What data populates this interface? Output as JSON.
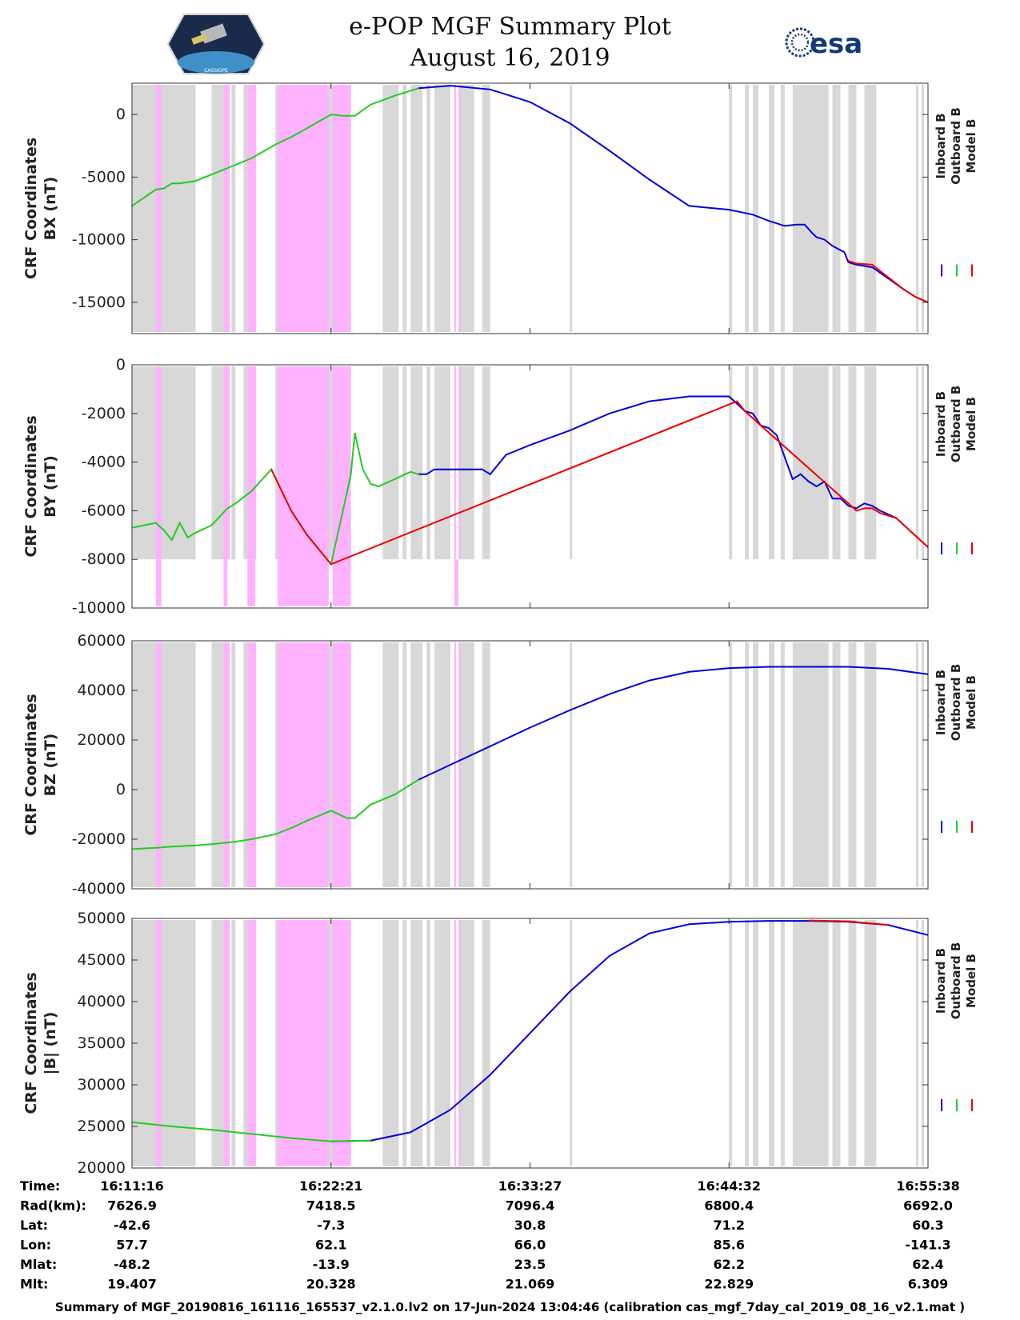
{
  "header": {
    "title": "e-POP MGF Summary Plot",
    "date": "August 16, 2019",
    "left_logo": "cassiope-satellite-logo",
    "left_logo_text": "CASSIOPE",
    "right_logo": "esa-logo",
    "right_logo_text": "esa"
  },
  "colors": {
    "inboard": "#0000dd",
    "outboard": "#22cc22",
    "model": "#ee0000",
    "gray_band": "#d8d8d8",
    "pink_band": "#ffb3ff"
  },
  "legend": [
    "Inboard B",
    "Outboard B",
    "Model B"
  ],
  "gray_intervals": [
    [
      0.0,
      0.08
    ],
    [
      0.1,
      0.12
    ],
    [
      0.125,
      0.13
    ],
    [
      0.14,
      0.15
    ],
    [
      0.18,
      0.275
    ],
    [
      0.315,
      0.335
    ],
    [
      0.34,
      0.345
    ],
    [
      0.35,
      0.365
    ],
    [
      0.37,
      0.375
    ],
    [
      0.38,
      0.4
    ],
    [
      0.41,
      0.43
    ],
    [
      0.44,
      0.45
    ],
    [
      0.55,
      0.553
    ],
    [
      0.75,
      0.754
    ],
    [
      0.77,
      0.775
    ],
    [
      0.78,
      0.787
    ],
    [
      0.8,
      0.807
    ],
    [
      0.815,
      0.82
    ],
    [
      0.83,
      0.875
    ],
    [
      0.88,
      0.89
    ],
    [
      0.9,
      0.91
    ],
    [
      0.92,
      0.935
    ],
    [
      0.985,
      0.988
    ],
    [
      0.992,
      0.995
    ]
  ],
  "pink_intervals": [
    [
      0.03,
      0.037
    ],
    [
      0.115,
      0.123
    ],
    [
      0.145,
      0.156
    ],
    [
      0.183,
      0.247
    ],
    [
      0.252,
      0.275
    ],
    [
      0.405,
      0.407
    ],
    [
      0.411,
      0.413
    ]
  ],
  "chart_data": [
    {
      "type": "line",
      "ylabel": "CRF Coordinates BX (nT)",
      "ylabel_lines": [
        "CRF Coordinates",
        "BX (nT)"
      ],
      "ylim": [
        -17500,
        2500
      ],
      "yticks": [
        0,
        -5000,
        -10000,
        -15000
      ],
      "ytick_labels": [
        "0",
        "-5000",
        "-10000",
        "-15000"
      ],
      "x_range": [
        0,
        1
      ],
      "series": [
        {
          "name": "Inboard B",
          "color": "#0000dd",
          "x": [
            0.36,
            0.4,
            0.45,
            0.5,
            0.55,
            0.6,
            0.65,
            0.7,
            0.75,
            0.765,
            0.78,
            0.8,
            0.82,
            0.835,
            0.845,
            0.855,
            0.86,
            0.87,
            0.88,
            0.895,
            0.9,
            0.91,
            0.93,
            0.95,
            0.97,
            0.985,
            1.0
          ],
          "y": [
            2100,
            2300,
            2000,
            1000,
            -700,
            -2900,
            -5200,
            -7300,
            -7600,
            -7800,
            -8000,
            -8500,
            -8900,
            -8800,
            -8800,
            -9500,
            -9800,
            -10000,
            -10500,
            -11000,
            -11800,
            -12000,
            -12200,
            -13100,
            -14000,
            -14600,
            -15000
          ]
        },
        {
          "name": "Outboard B",
          "color": "#22cc22",
          "x": [
            0.0,
            0.03,
            0.04,
            0.05,
            0.06,
            0.08,
            0.1,
            0.15,
            0.18,
            0.2,
            0.22,
            0.25,
            0.265,
            0.28,
            0.3,
            0.33,
            0.36
          ],
          "y": [
            -7300,
            -6000,
            -5900,
            -5500,
            -5500,
            -5300,
            -4800,
            -3500,
            -2400,
            -1800,
            -1100,
            0,
            -100,
            -100,
            800,
            1500,
            2100
          ]
        },
        {
          "name": "Model B",
          "color": "#ee0000",
          "x": [
            0.9,
            0.91,
            0.93,
            0.95,
            0.97,
            0.985,
            1.0
          ],
          "y": [
            -11700,
            -11900,
            -12000,
            -13000,
            -14000,
            -14600,
            -15000
          ]
        }
      ]
    },
    {
      "type": "line",
      "ylabel": "CRF Coordinates BY (nT)",
      "ylabel_lines": [
        "CRF Coordinates",
        "BY (nT)"
      ],
      "ylim": [
        -10000,
        0
      ],
      "yticks": [
        0,
        -2000,
        -4000,
        -6000,
        -8000,
        -10000
      ],
      "ytick_labels": [
        "0",
        "-2000",
        "-4000",
        "-6000",
        "-8000",
        "-10000"
      ],
      "x_range": [
        0,
        1
      ],
      "band_floor": -8000,
      "pink_lower_intervals": [
        [
          0.03,
          0.037
        ],
        [
          0.115,
          0.12
        ],
        [
          0.145,
          0.155
        ],
        [
          0.183,
          0.247
        ],
        [
          0.252,
          0.275
        ],
        [
          0.405,
          0.41
        ]
      ],
      "series": [
        {
          "name": "Inboard B",
          "color": "#0000dd",
          "x": [
            0.36,
            0.37,
            0.38,
            0.39,
            0.4,
            0.42,
            0.44,
            0.45,
            0.47,
            0.5,
            0.55,
            0.6,
            0.65,
            0.7,
            0.73,
            0.75,
            0.76,
            0.77,
            0.78,
            0.79,
            0.8,
            0.81,
            0.82,
            0.83,
            0.84,
            0.85,
            0.86,
            0.87,
            0.88,
            0.89,
            0.9,
            0.91,
            0.92,
            0.93,
            0.94,
            0.96,
            0.98,
            1.0
          ],
          "y": [
            -4500,
            -4500,
            -4300,
            -4300,
            -4300,
            -4300,
            -4300,
            -4500,
            -3700,
            -3300,
            -2700,
            -2000,
            -1500,
            -1300,
            -1300,
            -1300,
            -1600,
            -1900,
            -2000,
            -2500,
            -2600,
            -2900,
            -3800,
            -4700,
            -4500,
            -4800,
            -5000,
            -4800,
            -5500,
            -5500,
            -5800,
            -5900,
            -5700,
            -5800,
            -6000,
            -6300,
            -6900,
            -7500
          ]
        },
        {
          "name": "Outboard B",
          "color": "#22cc22",
          "x": [
            0.0,
            0.03,
            0.04,
            0.05,
            0.06,
            0.07,
            0.08,
            0.1,
            0.12,
            0.13,
            0.15,
            0.175,
            0.2,
            0.22,
            0.25,
            0.265,
            0.275,
            0.28,
            0.29,
            0.3,
            0.31,
            0.33,
            0.35,
            0.36
          ],
          "y": [
            -6700,
            -6500,
            -6800,
            -7200,
            -6500,
            -7100,
            -6900,
            -6600,
            -5900,
            -5700,
            -5200,
            -4300,
            -6000,
            -7000,
            -8200,
            -6000,
            -4500,
            -2800,
            -4300,
            -4900,
            -5000,
            -4700,
            -4400,
            -4500
          ]
        },
        {
          "name": "Model B",
          "color": "#ee0000",
          "x": [
            0.175,
            0.2,
            0.22,
            0.25,
            0.76,
            0.77,
            0.78,
            0.79,
            0.9,
            0.91,
            0.92,
            0.93,
            0.94,
            0.96,
            0.98,
            1.0
          ],
          "y": [
            -4300,
            -6000,
            -7000,
            -8200,
            -1500,
            -1900,
            -2200,
            -2500,
            -5700,
            -6000,
            -5900,
            -5900,
            -6100,
            -6300,
            -6900,
            -7500
          ]
        }
      ]
    },
    {
      "type": "line",
      "ylabel": "CRF Coordinates BZ (nT)",
      "ylabel_lines": [
        "CRF Coordinates",
        "BZ (nT)"
      ],
      "ylim": [
        -40000,
        60000
      ],
      "yticks": [
        60000,
        40000,
        20000,
        0,
        -20000,
        -40000
      ],
      "ytick_labels": [
        "60000",
        "40000",
        "20000",
        "0",
        "-20000",
        "-40000"
      ],
      "x_range": [
        0,
        1
      ],
      "series": [
        {
          "name": "Inboard B",
          "color": "#0000dd",
          "x": [
            0.36,
            0.4,
            0.45,
            0.5,
            0.55,
            0.6,
            0.65,
            0.7,
            0.75,
            0.8,
            0.85,
            0.9,
            0.95,
            1.0
          ],
          "y": [
            4000,
            10000,
            17500,
            25000,
            32000,
            38500,
            44000,
            47500,
            49000,
            49500,
            49500,
            49500,
            48700,
            46500
          ]
        },
        {
          "name": "Outboard B",
          "color": "#22cc22",
          "x": [
            0.0,
            0.03,
            0.05,
            0.08,
            0.1,
            0.13,
            0.15,
            0.18,
            0.2,
            0.22,
            0.25,
            0.27,
            0.28,
            0.3,
            0.33,
            0.36
          ],
          "y": [
            -24000,
            -23500,
            -23000,
            -22500,
            -22000,
            -21000,
            -20000,
            -18000,
            -15500,
            -12500,
            -8500,
            -11500,
            -11500,
            -6000,
            -2000,
            4000
          ]
        },
        {
          "name": "Model B",
          "color": "#ee0000",
          "x": [],
          "y": []
        }
      ]
    },
    {
      "type": "line",
      "ylabel": "CRF Coordinates |B| (nT)",
      "ylabel_lines": [
        "CRF Coordinates",
        "|B| (nT)"
      ],
      "ylim": [
        20000,
        50000
      ],
      "yticks": [
        50000,
        45000,
        40000,
        35000,
        30000,
        25000,
        20000
      ],
      "ytick_labels": [
        "50000",
        "45000",
        "40000",
        "35000",
        "30000",
        "25000",
        "20000"
      ],
      "x_range": [
        0,
        1
      ],
      "series": [
        {
          "name": "Inboard B",
          "color": "#0000dd",
          "x": [
            0.25,
            0.3,
            0.35,
            0.4,
            0.45,
            0.5,
            0.55,
            0.6,
            0.65,
            0.7,
            0.75,
            0.8,
            0.85,
            0.9,
            0.95,
            1.0
          ],
          "y": [
            23200,
            23300,
            24300,
            27000,
            31200,
            36200,
            41200,
            45500,
            48200,
            49300,
            49600,
            49700,
            49700,
            49600,
            49200,
            48000
          ]
        },
        {
          "name": "Outboard B",
          "color": "#22cc22",
          "x": [
            0.0,
            0.05,
            0.1,
            0.15,
            0.2,
            0.25,
            0.3
          ],
          "y": [
            25500,
            25000,
            24600,
            24100,
            23600,
            23200,
            23300
          ]
        },
        {
          "name": "Model B",
          "color": "#ee0000",
          "x": [
            0.85,
            0.9,
            0.95
          ],
          "y": [
            49750,
            49650,
            49200
          ]
        }
      ]
    }
  ],
  "orbit_table": {
    "row_labels": [
      "Time:",
      "Rad(km):",
      "Lat:",
      "Lon:",
      "Mlat:",
      "Mlt:"
    ],
    "columns": [
      [
        "16:11:16",
        "7626.9",
        "-42.6",
        "57.7",
        "-48.2",
        "19.407"
      ],
      [
        "16:22:21",
        "7418.5",
        "-7.3",
        "62.1",
        "-13.9",
        "20.328"
      ],
      [
        "16:33:27",
        "7096.4",
        "30.8",
        "66.0",
        "23.5",
        "21.069"
      ],
      [
        "16:44:32",
        "6800.4",
        "71.2",
        "85.6",
        "62.2",
        "22.829"
      ],
      [
        "16:55:38",
        "6692.0",
        "60.3",
        "-141.3",
        "62.4",
        "6.309"
      ]
    ]
  },
  "footer": "Summary of MGF_20190816_161116_165537_v2.1.0.lv2 on 17-Jun-2024 13:04:46 (calibration cas_mgf_7day_cal_2019_08_16_v2.1.mat )"
}
